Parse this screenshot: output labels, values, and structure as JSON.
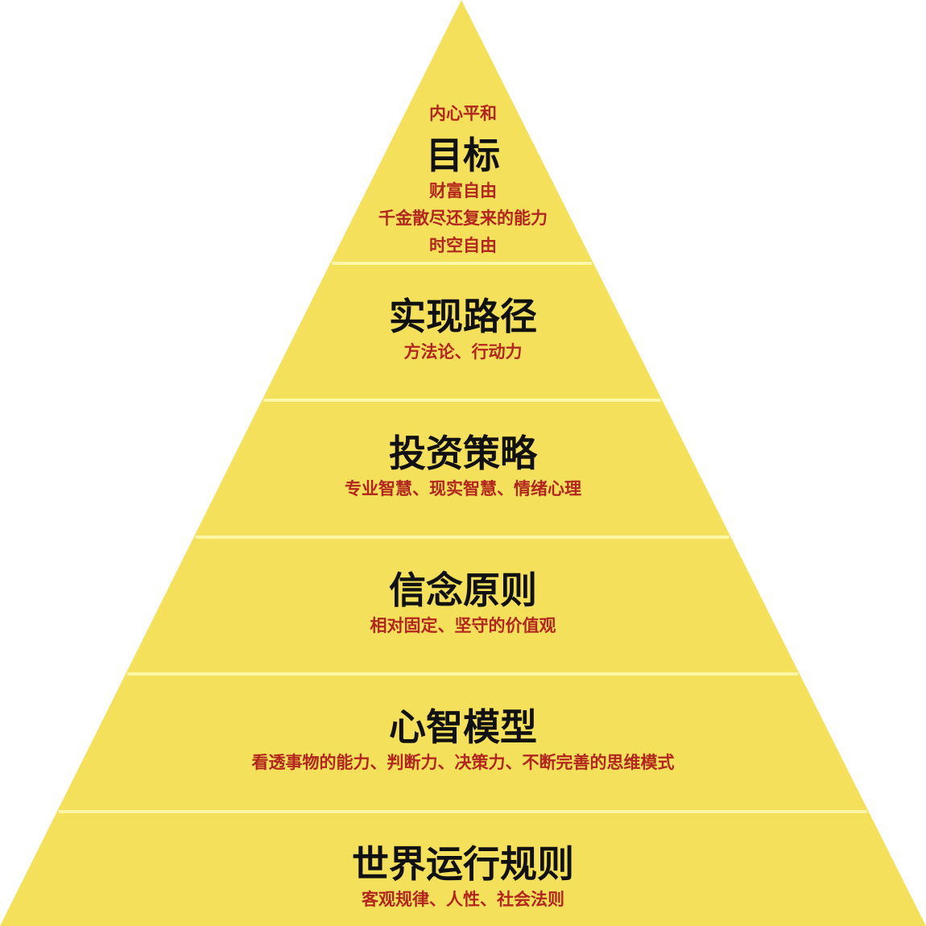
{
  "colors": {
    "fill": "#f5e05c",
    "divider": "#fff6a8",
    "title": "#111111",
    "subtitle": "#b3261e"
  },
  "top_caption": "内心平和",
  "levels": [
    {
      "title": "目标",
      "subtitles": [
        "财富自由",
        "千金散尽还复来的能力",
        "时空自由"
      ]
    },
    {
      "title": "实现路径",
      "subtitles": [
        "方法论、行动力"
      ]
    },
    {
      "title": "投资策略",
      "subtitles": [
        "专业智慧、现实智慧、情绪心理"
      ]
    },
    {
      "title": "信念原则",
      "subtitles": [
        "相对固定、坚守的价值观"
      ]
    },
    {
      "title": "心智模型",
      "subtitles": [
        "看透事物的能力、判断力、决策力、不断完善的思维模式"
      ]
    },
    {
      "title": "世界运行规则",
      "subtitles": [
        "客观规律、人性、社会法则"
      ]
    }
  ]
}
